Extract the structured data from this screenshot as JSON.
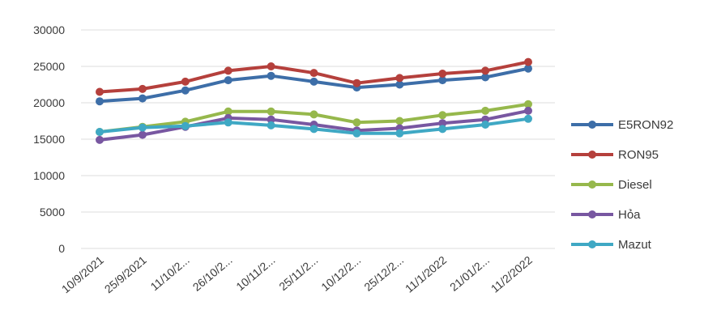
{
  "chart_data": {
    "type": "line",
    "title": "",
    "xlabel": "",
    "ylabel": "",
    "ylim": [
      0,
      30000
    ],
    "yticks": [
      0,
      5000,
      10000,
      15000,
      20000,
      25000,
      30000
    ],
    "grid": true,
    "legend_position": "right",
    "categories": [
      "10/9/2021",
      "25/9/2021",
      "11/10/2...",
      "26/10/2...",
      "10/11/2...",
      "25/11/2...",
      "10/12/2...",
      "25/12/2...",
      "11/1/2022",
      "21/01/2...",
      "11/2/2022"
    ],
    "series": [
      {
        "name": "E5RON92",
        "color": "#3d6ea8",
        "values": [
          20200,
          20600,
          21700,
          23100,
          23700,
          22900,
          22100,
          22500,
          23100,
          23500,
          24700
        ]
      },
      {
        "name": "RON95",
        "color": "#b5403c",
        "values": [
          21500,
          21900,
          22900,
          24400,
          25000,
          24100,
          22700,
          23400,
          24000,
          24400,
          25600
        ]
      },
      {
        "name": "Diesel",
        "color": "#96b84c",
        "values": [
          16000,
          16700,
          17400,
          18800,
          18800,
          18400,
          17300,
          17500,
          18300,
          18900,
          19800
        ]
      },
      {
        "name": "Hỏa",
        "color": "#7857a1",
        "values": [
          14900,
          15600,
          16700,
          17900,
          17700,
          17000,
          16200,
          16500,
          17200,
          17700,
          18900
        ]
      },
      {
        "name": "Mazut",
        "color": "#3fa8c4",
        "values": [
          16000,
          16600,
          16800,
          17300,
          16900,
          16400,
          15800,
          15800,
          16400,
          17000,
          17800
        ]
      }
    ]
  }
}
